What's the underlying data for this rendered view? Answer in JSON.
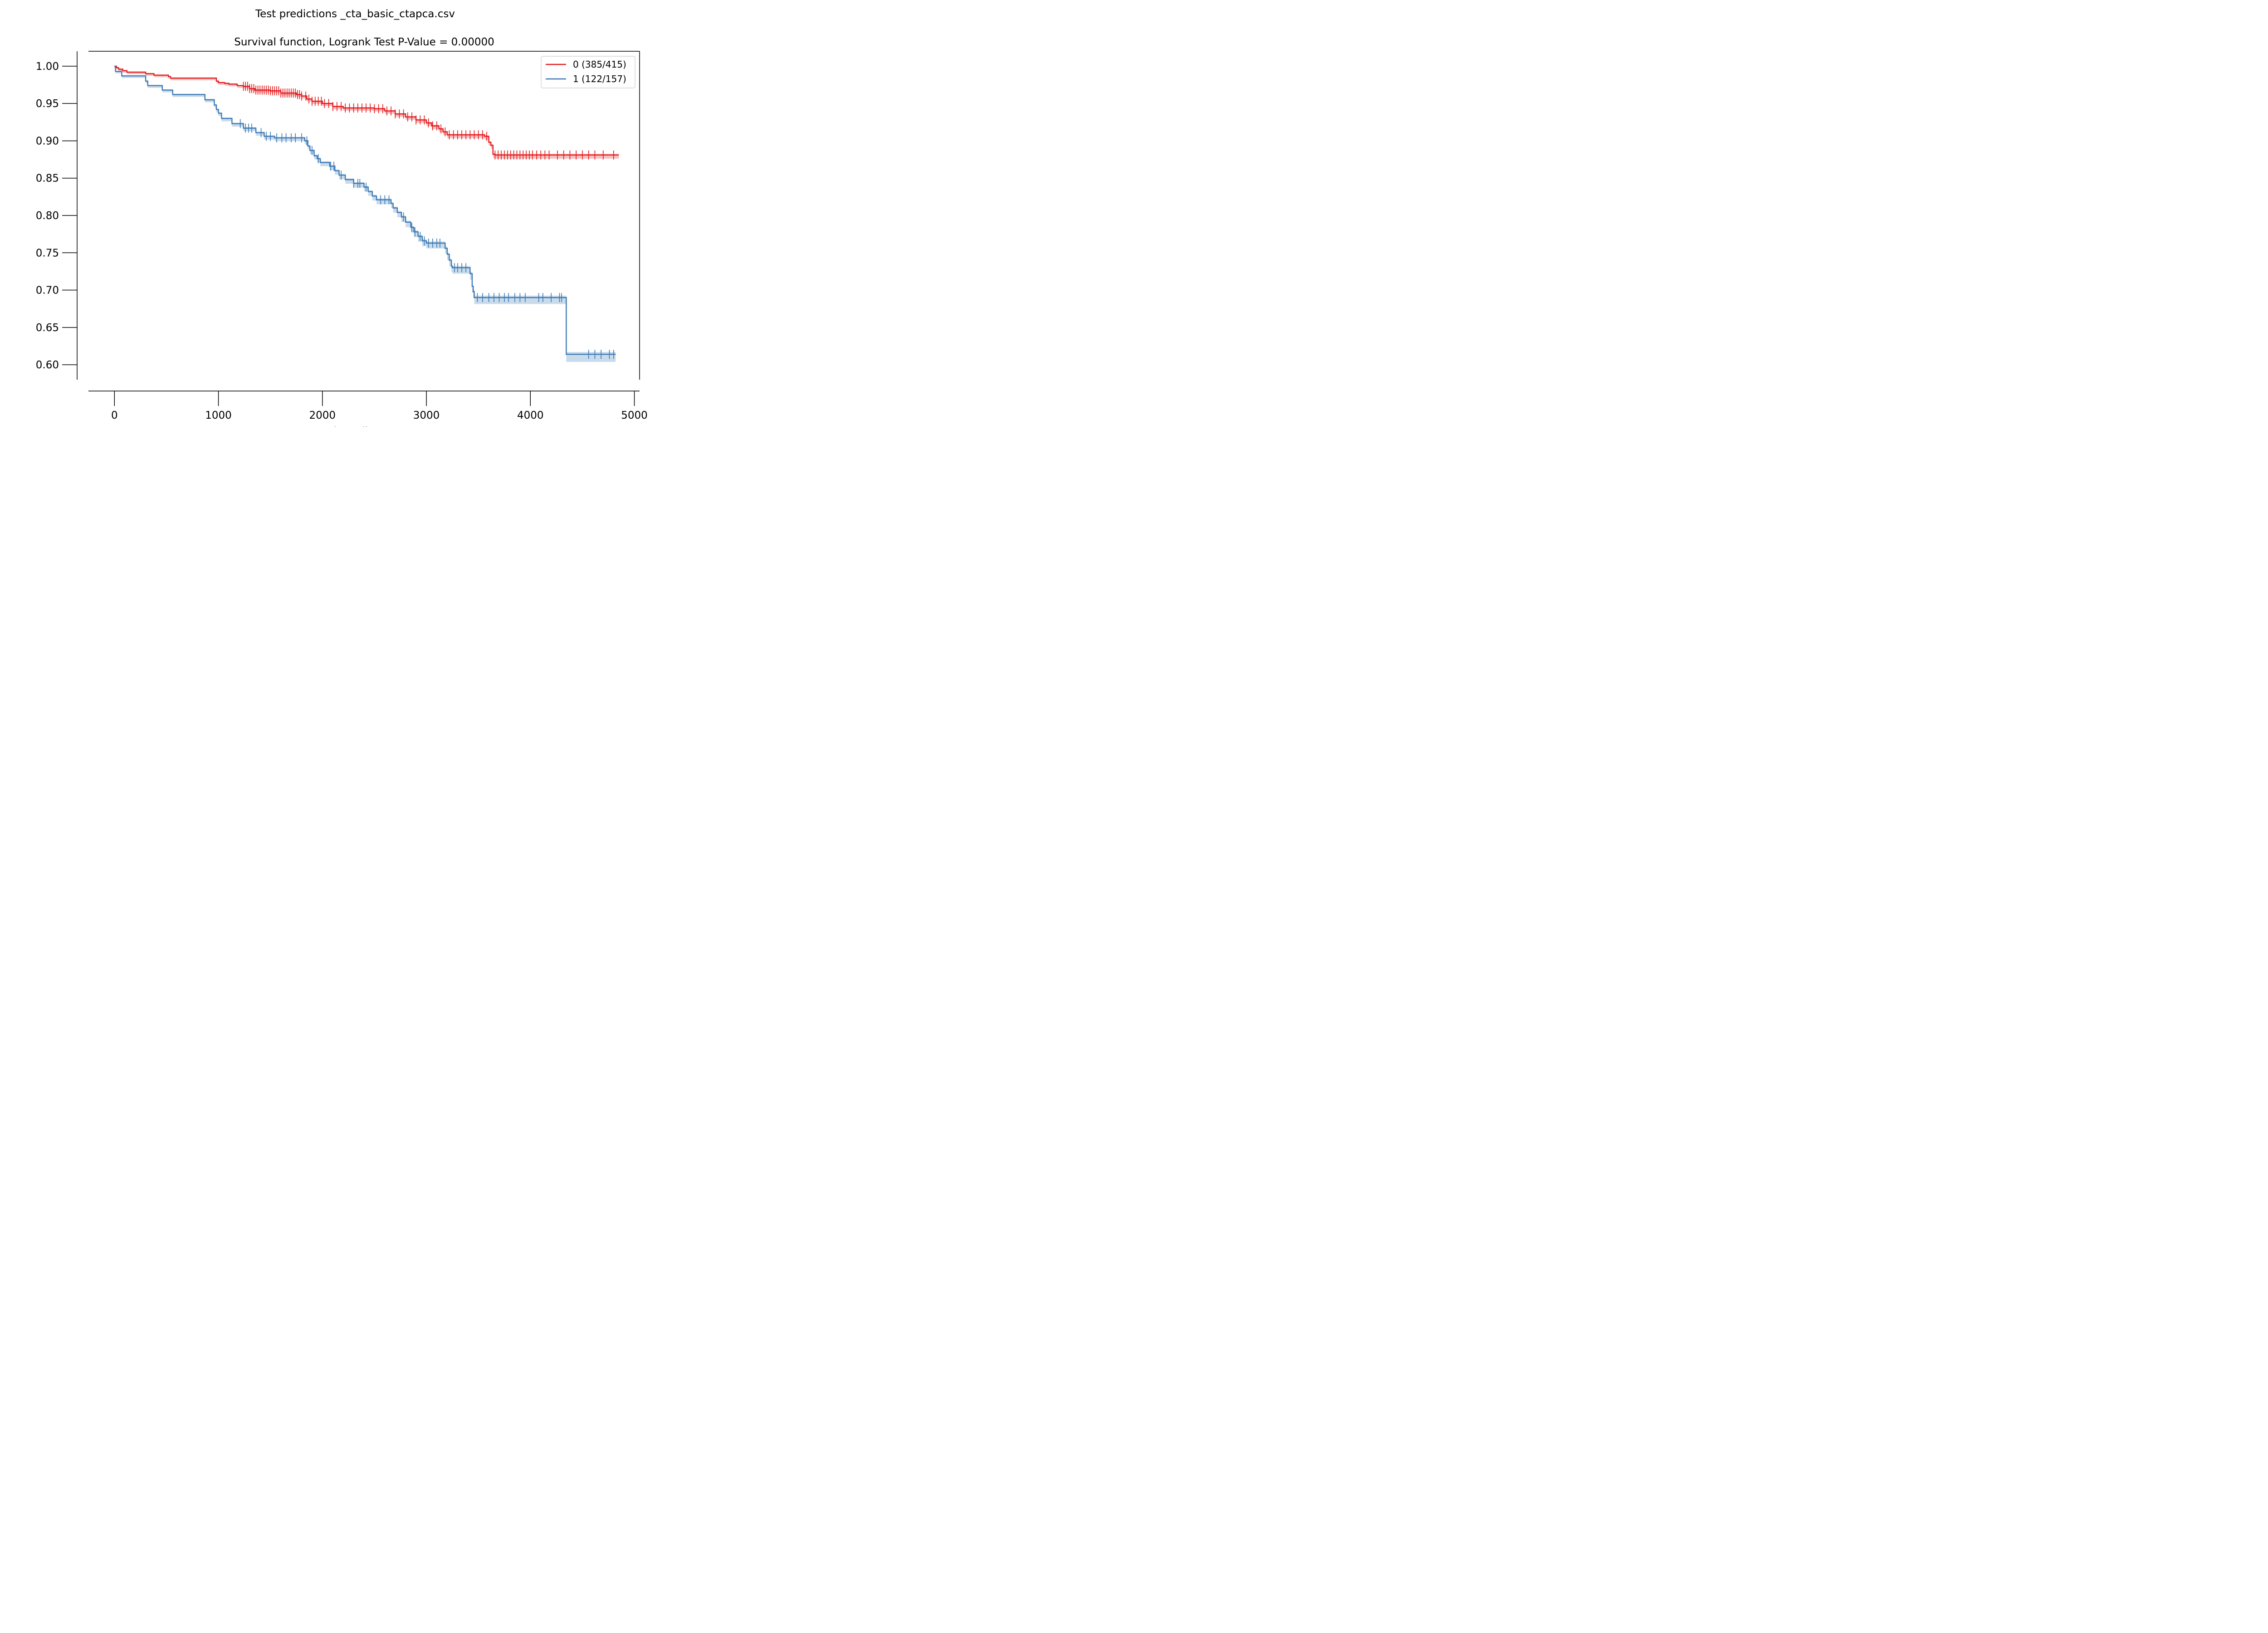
{
  "chart_data": {
    "type": "line",
    "title": "Test predictions _cta_basic_ctapca.csv",
    "subtitle": "Survival function, Logrank Test P-Value = 0.00000",
    "xlabel": "time_diag",
    "ylabel": "",
    "xlim": [
      -250,
      5050
    ],
    "ylim": [
      0.58,
      1.02
    ],
    "x_ticks": [
      0,
      1000,
      2000,
      3000,
      4000,
      5000
    ],
    "y_ticks": [
      0.6,
      0.65,
      0.7,
      0.75,
      0.8,
      0.85,
      0.9,
      0.95,
      1.0
    ],
    "x_tick_labels": [
      "0",
      "1000",
      "2000",
      "3000",
      "4000",
      "5000"
    ],
    "y_tick_labels": [
      "0.60",
      "0.65",
      "0.70",
      "0.75",
      "0.80",
      "0.85",
      "0.90",
      "0.95",
      "1.00"
    ],
    "grid": false,
    "legend_position": "top-right",
    "series": [
      {
        "name": "0 (385/415)",
        "color": "#e31a1c",
        "steps": [
          [
            0,
            1.0
          ],
          [
            20,
            0.998
          ],
          [
            40,
            0.996
          ],
          [
            80,
            0.994
          ],
          [
            120,
            0.992
          ],
          [
            180,
            0.992
          ],
          [
            300,
            0.99
          ],
          [
            380,
            0.99
          ],
          [
            380,
            0.988
          ],
          [
            520,
            0.986
          ],
          [
            540,
            0.984
          ],
          [
            960,
            0.984
          ],
          [
            980,
            0.98
          ],
          [
            1000,
            0.978
          ],
          [
            1060,
            0.977
          ],
          [
            1100,
            0.976
          ],
          [
            1180,
            0.974
          ],
          [
            1240,
            0.973
          ],
          [
            1300,
            0.97
          ],
          [
            1350,
            0.968
          ],
          [
            1500,
            0.967
          ],
          [
            1600,
            0.964
          ],
          [
            1750,
            0.962
          ],
          [
            1800,
            0.96
          ],
          [
            1850,
            0.956
          ],
          [
            1900,
            0.953
          ],
          [
            2000,
            0.95
          ],
          [
            2100,
            0.946
          ],
          [
            2200,
            0.944
          ],
          [
            2400,
            0.944
          ],
          [
            2500,
            0.943
          ],
          [
            2600,
            0.94
          ],
          [
            2700,
            0.936
          ],
          [
            2800,
            0.932
          ],
          [
            2900,
            0.928
          ],
          [
            3000,
            0.924
          ],
          [
            3050,
            0.92
          ],
          [
            3120,
            0.916
          ],
          [
            3160,
            0.912
          ],
          [
            3200,
            0.908
          ],
          [
            3560,
            0.906
          ],
          [
            3600,
            0.898
          ],
          [
            3620,
            0.894
          ],
          [
            3640,
            0.882
          ],
          [
            3660,
            0.881
          ],
          [
            4850,
            0.881
          ]
        ],
        "censor_x": [
          1240,
          1260,
          1280,
          1300,
          1320,
          1340,
          1360,
          1380,
          1400,
          1420,
          1440,
          1460,
          1480,
          1500,
          1520,
          1540,
          1560,
          1580,
          1600,
          1620,
          1640,
          1660,
          1680,
          1700,
          1720,
          1740,
          1760,
          1780,
          1800,
          1840,
          1870,
          1900,
          1930,
          1960,
          1990,
          2020,
          2060,
          2100,
          2140,
          2180,
          2220,
          2260,
          2300,
          2340,
          2380,
          2420,
          2460,
          2500,
          2540,
          2580,
          2620,
          2660,
          2700,
          2740,
          2780,
          2820,
          2860,
          2900,
          2940,
          2980,
          3020,
          3060,
          3100,
          3140,
          3180,
          3220,
          3260,
          3300,
          3340,
          3380,
          3420,
          3460,
          3500,
          3540,
          3580,
          3660,
          3690,
          3720,
          3750,
          3780,
          3810,
          3840,
          3870,
          3900,
          3930,
          3960,
          3990,
          4020,
          4060,
          4100,
          4140,
          4180,
          4260,
          4320,
          4380,
          4440,
          4500,
          4560,
          4620,
          4700,
          4800
        ]
      },
      {
        "name": "1 (122/157)",
        "color": "#3c7ab5",
        "steps": [
          [
            0,
            1.0
          ],
          [
            10,
            0.993
          ],
          [
            70,
            0.987
          ],
          [
            300,
            0.98
          ],
          [
            320,
            0.974
          ],
          [
            460,
            0.968
          ],
          [
            560,
            0.962
          ],
          [
            870,
            0.955
          ],
          [
            960,
            0.948
          ],
          [
            980,
            0.942
          ],
          [
            1000,
            0.937
          ],
          [
            1030,
            0.93
          ],
          [
            1130,
            0.923
          ],
          [
            1240,
            0.917
          ],
          [
            1360,
            0.911
          ],
          [
            1440,
            0.906
          ],
          [
            1540,
            0.904
          ],
          [
            1830,
            0.9
          ],
          [
            1860,
            0.893
          ],
          [
            1880,
            0.887
          ],
          [
            1920,
            0.88
          ],
          [
            1950,
            0.876
          ],
          [
            1980,
            0.871
          ],
          [
            2070,
            0.866
          ],
          [
            2120,
            0.86
          ],
          [
            2160,
            0.854
          ],
          [
            2220,
            0.848
          ],
          [
            2300,
            0.843
          ],
          [
            2400,
            0.838
          ],
          [
            2440,
            0.832
          ],
          [
            2480,
            0.826
          ],
          [
            2520,
            0.821
          ],
          [
            2660,
            0.816
          ],
          [
            2680,
            0.81
          ],
          [
            2720,
            0.804
          ],
          [
            2760,
            0.798
          ],
          [
            2800,
            0.791
          ],
          [
            2850,
            0.784
          ],
          [
            2880,
            0.778
          ],
          [
            2920,
            0.772
          ],
          [
            2960,
            0.766
          ],
          [
            3000,
            0.763
          ],
          [
            3180,
            0.756
          ],
          [
            3200,
            0.748
          ],
          [
            3220,
            0.74
          ],
          [
            3240,
            0.732
          ],
          [
            3250,
            0.73
          ],
          [
            3420,
            0.722
          ],
          [
            3440,
            0.705
          ],
          [
            3450,
            0.698
          ],
          [
            3460,
            0.69
          ],
          [
            4340,
            0.69
          ],
          [
            4345,
            0.614
          ],
          [
            4820,
            0.614
          ]
        ],
        "censor_x": [
          1210,
          1260,
          1290,
          1320,
          1410,
          1460,
          1500,
          1560,
          1610,
          1650,
          1700,
          1740,
          1800,
          1850,
          1900,
          1960,
          2080,
          2110,
          2180,
          2300,
          2340,
          2360,
          2420,
          2560,
          2600,
          2640,
          2780,
          2860,
          2890,
          2940,
          2980,
          3020,
          3060,
          3100,
          3130,
          3270,
          3300,
          3340,
          3380,
          3490,
          3540,
          3600,
          3650,
          3700,
          3750,
          3790,
          3850,
          3900,
          3950,
          4080,
          4120,
          4200,
          4280,
          4300,
          4560,
          4620,
          4680,
          4760,
          4800
        ]
      }
    ]
  }
}
